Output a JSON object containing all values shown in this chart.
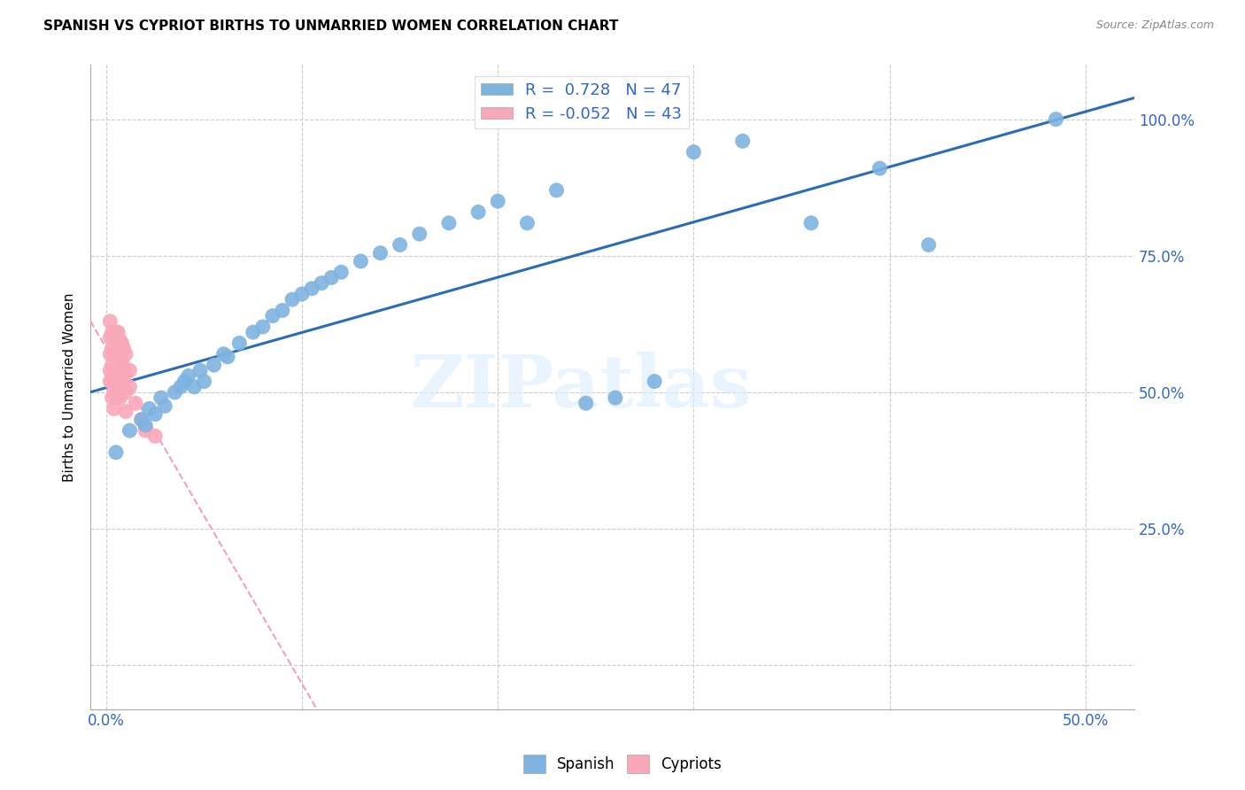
{
  "title": "SPANISH VS CYPRIOT BIRTHS TO UNMARRIED WOMEN CORRELATION CHART",
  "source": "Source: ZipAtlas.com",
  "ylabel_label": "Births to Unmarried Women",
  "legend_blue": "R =  0.728   N = 47",
  "legend_pink": "R = -0.052   N = 43",
  "blue_color": "#7EB3E0",
  "pink_color": "#F9A8BA",
  "regression_blue_color": "#2B6CB8",
  "regression_pink_color": "#F4A0B5",
  "watermark_text": "ZIPatlas",
  "blue_x": [
    0.005,
    0.012,
    0.018,
    0.02,
    0.022,
    0.025,
    0.028,
    0.03,
    0.035,
    0.038,
    0.04,
    0.042,
    0.045,
    0.048,
    0.05,
    0.055,
    0.06,
    0.062,
    0.068,
    0.075,
    0.08,
    0.085,
    0.09,
    0.095,
    0.1,
    0.105,
    0.11,
    0.115,
    0.12,
    0.13,
    0.14,
    0.15,
    0.16,
    0.175,
    0.19,
    0.2,
    0.215,
    0.23,
    0.245,
    0.26,
    0.28,
    0.3,
    0.325,
    0.36,
    0.395,
    0.42,
    0.485
  ],
  "blue_y": [
    0.39,
    0.43,
    0.45,
    0.44,
    0.47,
    0.46,
    0.49,
    0.475,
    0.5,
    0.51,
    0.52,
    0.53,
    0.51,
    0.54,
    0.52,
    0.55,
    0.57,
    0.565,
    0.59,
    0.61,
    0.62,
    0.64,
    0.65,
    0.67,
    0.68,
    0.69,
    0.7,
    0.71,
    0.72,
    0.74,
    0.755,
    0.77,
    0.79,
    0.81,
    0.83,
    0.85,
    0.81,
    0.87,
    0.48,
    0.49,
    0.52,
    0.94,
    0.96,
    0.81,
    0.91,
    0.77,
    1.0
  ],
  "pink_x": [
    0.002,
    0.002,
    0.002,
    0.002,
    0.002,
    0.003,
    0.003,
    0.003,
    0.003,
    0.003,
    0.004,
    0.004,
    0.004,
    0.004,
    0.004,
    0.005,
    0.005,
    0.005,
    0.005,
    0.006,
    0.006,
    0.006,
    0.006,
    0.007,
    0.007,
    0.007,
    0.007,
    0.008,
    0.008,
    0.008,
    0.009,
    0.009,
    0.009,
    0.01,
    0.01,
    0.01,
    0.01,
    0.012,
    0.012,
    0.015,
    0.018,
    0.02,
    0.025
  ],
  "pink_y": [
    0.63,
    0.6,
    0.57,
    0.54,
    0.52,
    0.61,
    0.58,
    0.55,
    0.52,
    0.49,
    0.6,
    0.57,
    0.53,
    0.5,
    0.47,
    0.61,
    0.57,
    0.53,
    0.49,
    0.61,
    0.575,
    0.54,
    0.505,
    0.595,
    0.56,
    0.525,
    0.49,
    0.59,
    0.555,
    0.52,
    0.58,
    0.545,
    0.51,
    0.57,
    0.535,
    0.5,
    0.465,
    0.54,
    0.51,
    0.48,
    0.45,
    0.43,
    0.42
  ],
  "xmin": -0.008,
  "xmax": 0.525,
  "ymin": -0.08,
  "ymax": 1.1,
  "grid_color": "#CCCCCC",
  "xtick_positions": [
    0.0,
    0.1,
    0.2,
    0.3,
    0.4,
    0.5
  ],
  "xtick_labels": [
    "0.0%",
    "",
    "",
    "",
    "",
    "50.0%"
  ],
  "ytick_positions": [
    0.0,
    0.25,
    0.5,
    0.75,
    1.0
  ],
  "right_ytick_labels": [
    "",
    "25.0%",
    "50.0%",
    "75.0%",
    "100.0%"
  ]
}
